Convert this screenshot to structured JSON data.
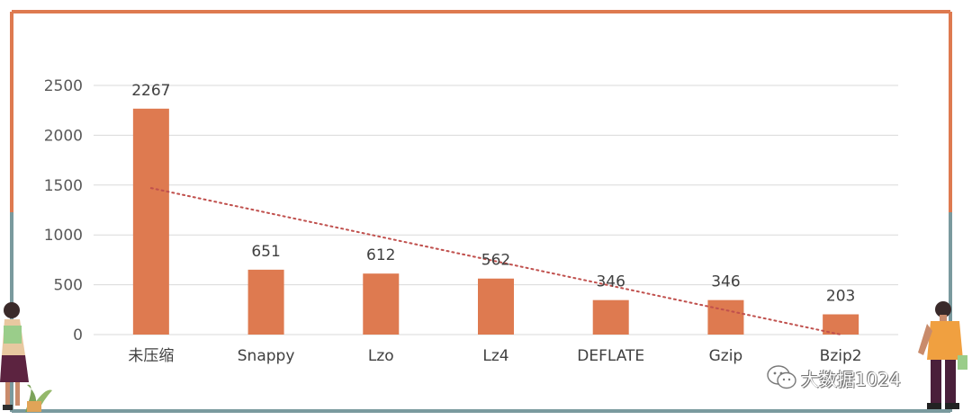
{
  "colors": {
    "bar": "#DE7A50",
    "trendline": "#C0504D",
    "frame_top": "#DE7A50",
    "frame_bottom": "#7A9A9E",
    "grid": "#D9D9D9"
  },
  "watermark": {
    "icon": "wechat-icon",
    "text": "大数据1024"
  },
  "chart_data": {
    "type": "bar",
    "categories": [
      "未压缩",
      "Snappy",
      "Lzo",
      "Lz4",
      "DEFLATE",
      "Gzip",
      "Bzip2"
    ],
    "values": [
      2267,
      651,
      612,
      562,
      346,
      346,
      203
    ],
    "data_labels": [
      "2267",
      "651",
      "612",
      "562",
      "346",
      "346",
      "203"
    ],
    "yticks": [
      "0",
      "500",
      "1000",
      "1500",
      "2000",
      "2500"
    ],
    "ylim": [
      0,
      2500
    ],
    "grid": true,
    "legend": "none",
    "trendline": {
      "type": "linear",
      "style": "dotted",
      "start": 1470,
      "end": 0
    },
    "title": "",
    "xlabel": "",
    "ylabel": ""
  }
}
